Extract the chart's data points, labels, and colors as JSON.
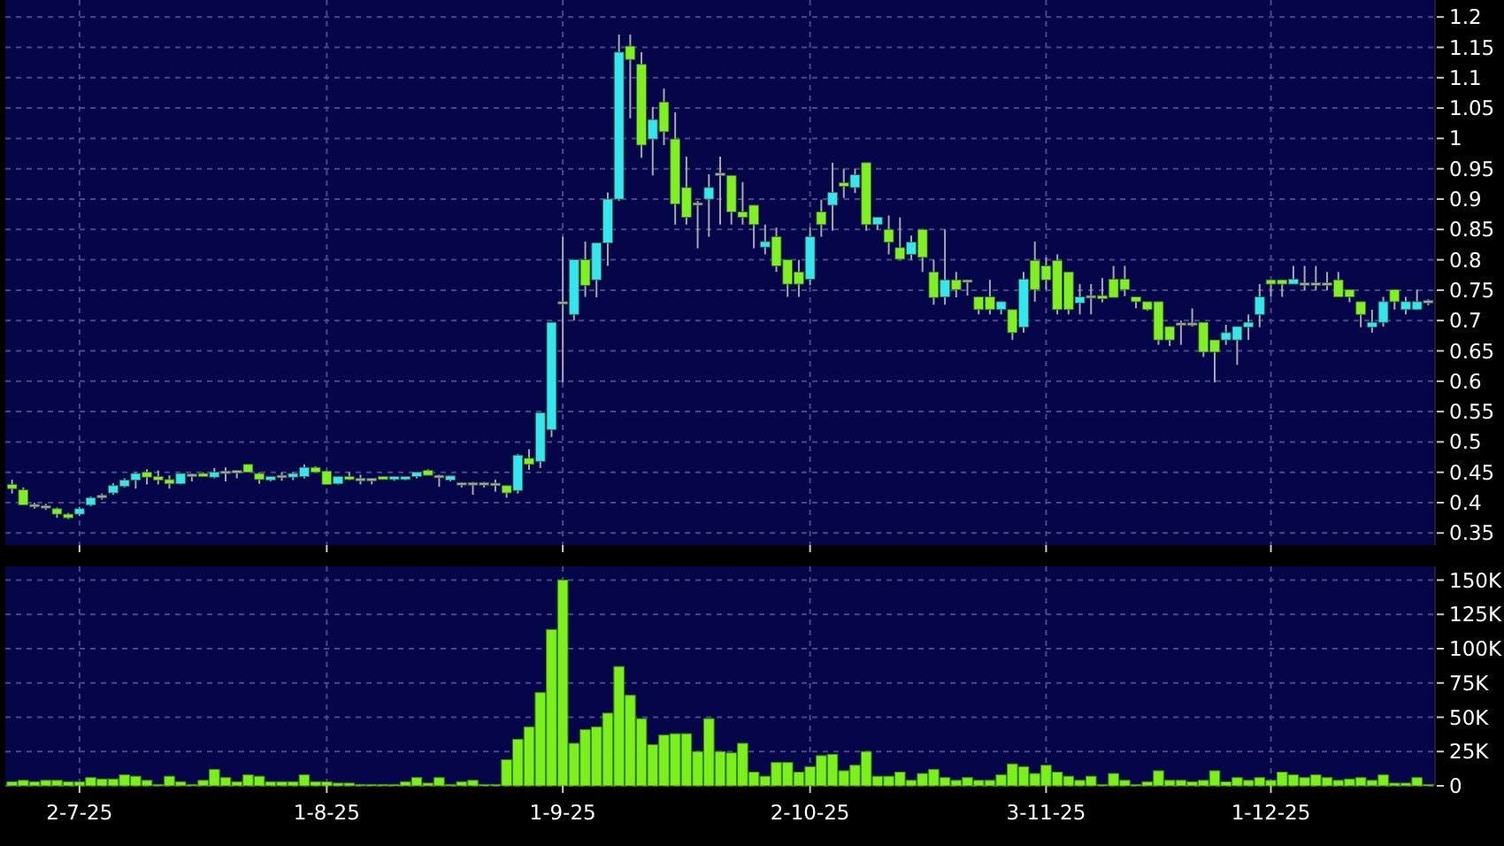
{
  "chart_data": [
    {
      "type": "candlestick",
      "tick_labels": "y",
      "grid": true,
      "colors": [
        "#80f020",
        "#80f020",
        "#a8a8a8",
        "#a8a8a8",
        "#80f020",
        "#80f020",
        "#33e6f0",
        "#33e6f0",
        "#a8a8a8",
        "#33e6f0",
        "#33e6f0",
        "#33e6f0",
        "#80f020",
        "#80f020",
        "#80f020",
        "#33e6f0",
        "#a8a8a8",
        "#80f020",
        "#33e6f0",
        "#a8a8a8",
        "#a8a8a8",
        "#80f020",
        "#80f020",
        "#33e6f0",
        "#a8a8a8",
        "#33e6f0",
        "#33e6f0",
        "#80f020",
        "#80f020",
        "#33e6f0",
        "#80f020",
        "#a8a8a8",
        "#a8a8a8",
        "#80f020",
        "#33e6f0",
        "#33e6f0",
        "#33e6f0",
        "#80f020",
        "#a8a8a8",
        "#33e6f0",
        "#a8a8a8",
        "#a8a8a8",
        "#a8a8a8",
        "#a8a8a8",
        "#80f020",
        "#33e6f0",
        "#80f020",
        "#33e6f0",
        "#33e6f0",
        "#a8a8a8",
        "#33e6f0",
        "#80f020",
        "#33e6f0",
        "#33e6f0",
        "#33e6f0",
        "#80f020",
        "#80f020",
        "#33e6f0",
        "#80f020",
        "#80f020",
        "#80f020",
        "#a8a8a8",
        "#33e6f0",
        "#a8a8a8",
        "#80f020",
        "#80f020",
        "#80f020",
        "#33e6f0",
        "#80f020",
        "#80f020",
        "#80f020",
        "#33e6f0",
        "#80f020",
        "#33e6f0",
        "#80f020",
        "#33e6f0",
        "#80f020",
        "#33e6f0",
        "#80f020",
        "#80f020",
        "#33e6f0",
        "#80f020",
        "#80f020",
        "#33e6f0",
        "#80f020",
        "#a8a8a8",
        "#80f020",
        "#80f020",
        "#33e6f0",
        "#80f020",
        "#33e6f0",
        "#80f020",
        "#80f020",
        "#80f020",
        "#80f020",
        "#33e6f0",
        "#a8a8a8",
        "#80f020",
        "#80f020",
        "#80f020",
        "#80f020",
        "#80f020",
        "#80f020",
        "#80f020",
        "#a8a8a8",
        "#a8a8a8",
        "#80f020",
        "#80f020",
        "#33e6f0",
        "#33e6f0",
        "#33e6f0",
        "#33e6f0",
        "#80f020",
        "#80f020",
        "#33e6f0",
        "#a8a8a8",
        "#a8a8a8",
        "#a8a8a8",
        "#80f020",
        "#80f020",
        "#80f020",
        "#33e6f0",
        "#33e6f0",
        "#80f020",
        "#33e6f0",
        "#33e6f0",
        "#a8a8a8"
      ],
      "ylim": [
        0.33,
        1.228
      ],
      "yticks": [
        0.35,
        0.4,
        0.45,
        0.5,
        0.55,
        0.6,
        0.65,
        0.7,
        0.75,
        0.8,
        0.85,
        0.9,
        0.95,
        1,
        1.05,
        1.1,
        1.15,
        1.2
      ],
      "ohlc": [
        [
          0.43,
          0.438,
          0.415,
          0.423
        ],
        [
          0.421,
          0.425,
          0.396,
          0.396
        ],
        [
          0.395,
          0.4,
          0.39,
          0.395
        ],
        [
          0.393,
          0.398,
          0.388,
          0.393
        ],
        [
          0.39,
          0.392,
          0.375,
          0.381
        ],
        [
          0.381,
          0.383,
          0.373,
          0.375
        ],
        [
          0.381,
          0.393,
          0.378,
          0.39
        ],
        [
          0.396,
          0.41,
          0.394,
          0.408
        ],
        [
          0.41,
          0.415,
          0.405,
          0.41
        ],
        [
          0.416,
          0.432,
          0.413,
          0.428
        ],
        [
          0.427,
          0.44,
          0.425,
          0.437
        ],
        [
          0.437,
          0.45,
          0.423,
          0.448
        ],
        [
          0.45,
          0.455,
          0.43,
          0.442
        ],
        [
          0.443,
          0.453,
          0.43,
          0.437
        ],
        [
          0.438,
          0.445,
          0.423,
          0.431
        ],
        [
          0.431,
          0.448,
          0.43,
          0.448
        ],
        [
          0.445,
          0.448,
          0.435,
          0.445
        ],
        [
          0.448,
          0.45,
          0.443,
          0.443
        ],
        [
          0.442,
          0.457,
          0.44,
          0.45
        ],
        [
          0.45,
          0.458,
          0.435,
          0.45
        ],
        [
          0.451,
          0.452,
          0.44,
          0.451
        ],
        [
          0.463,
          0.463,
          0.45,
          0.45
        ],
        [
          0.448,
          0.45,
          0.431,
          0.438
        ],
        [
          0.437,
          0.443,
          0.435,
          0.443
        ],
        [
          0.443,
          0.45,
          0.436,
          0.443
        ],
        [
          0.442,
          0.45,
          0.437,
          0.448
        ],
        [
          0.443,
          0.463,
          0.44,
          0.458
        ],
        [
          0.458,
          0.46,
          0.45,
          0.45
        ],
        [
          0.452,
          0.453,
          0.43,
          0.43
        ],
        [
          0.431,
          0.443,
          0.43,
          0.443
        ],
        [
          0.443,
          0.45,
          0.437,
          0.438
        ],
        [
          0.438,
          0.446,
          0.43,
          0.438
        ],
        [
          0.438,
          0.44,
          0.43,
          0.438
        ],
        [
          0.443,
          0.443,
          0.438,
          0.438
        ],
        [
          0.438,
          0.443,
          0.436,
          0.443
        ],
        [
          0.438,
          0.443,
          0.437,
          0.443
        ],
        [
          0.443,
          0.45,
          0.44,
          0.45
        ],
        [
          0.453,
          0.455,
          0.445,
          0.445
        ],
        [
          0.443,
          0.446,
          0.426,
          0.443
        ],
        [
          0.437,
          0.444,
          0.435,
          0.444
        ],
        [
          0.431,
          0.433,
          0.425,
          0.431
        ],
        [
          0.431,
          0.434,
          0.413,
          0.431
        ],
        [
          0.431,
          0.434,
          0.425,
          0.431
        ],
        [
          0.43,
          0.438,
          0.418,
          0.43
        ],
        [
          0.428,
          0.428,
          0.408,
          0.416
        ],
        [
          0.42,
          0.48,
          0.415,
          0.478
        ],
        [
          0.473,
          0.488,
          0.454,
          0.463
        ],
        [
          0.468,
          0.548,
          0.457,
          0.548
        ],
        [
          0.52,
          0.697,
          0.508,
          0.697
        ],
        [
          0.729,
          0.838,
          0.598,
          0.729
        ],
        [
          0.71,
          0.8,
          0.7,
          0.8
        ],
        [
          0.8,
          0.83,
          0.739,
          0.758
        ],
        [
          0.767,
          0.828,
          0.738,
          0.828
        ],
        [
          0.828,
          0.911,
          0.79,
          0.9
        ],
        [
          0.9,
          1.171,
          0.897,
          1.142
        ],
        [
          1.152,
          1.171,
          1.033,
          1.13
        ],
        [
          1.122,
          1.142,
          0.968,
          0.989
        ],
        [
          0.999,
          1.052,
          0.939,
          1.031
        ],
        [
          1.06,
          1.082,
          0.989,
          1.011
        ],
        [
          0.999,
          1.043,
          0.858,
          0.892
        ],
        [
          0.919,
          0.97,
          0.858,
          0.87
        ],
        [
          0.892,
          0.897,
          0.819,
          0.892
        ],
        [
          0.9,
          0.941,
          0.838,
          0.919
        ],
        [
          0.941,
          0.97,
          0.858,
          0.941
        ],
        [
          0.939,
          0.939,
          0.858,
          0.879
        ],
        [
          0.879,
          0.928,
          0.858,
          0.87
        ],
        [
          0.89,
          0.89,
          0.819,
          0.858
        ],
        [
          0.821,
          0.858,
          0.809,
          0.83
        ],
        [
          0.838,
          0.853,
          0.78,
          0.79
        ],
        [
          0.8,
          0.8,
          0.739,
          0.76
        ],
        [
          0.78,
          0.8,
          0.739,
          0.76
        ],
        [
          0.768,
          0.853,
          0.758,
          0.838
        ],
        [
          0.879,
          0.899,
          0.838,
          0.858
        ],
        [
          0.89,
          0.96,
          0.848,
          0.911
        ],
        [
          0.927,
          0.95,
          0.902,
          0.921
        ],
        [
          0.919,
          0.95,
          0.91,
          0.94
        ],
        [
          0.96,
          0.96,
          0.848,
          0.858
        ],
        [
          0.858,
          0.87,
          0.85,
          0.87
        ],
        [
          0.85,
          0.873,
          0.809,
          0.829
        ],
        [
          0.82,
          0.87,
          0.8,
          0.801
        ],
        [
          0.809,
          0.84,
          0.8,
          0.829
        ],
        [
          0.85,
          0.85,
          0.78,
          0.804
        ],
        [
          0.78,
          0.8,
          0.726,
          0.738
        ],
        [
          0.739,
          0.85,
          0.726,
          0.767
        ],
        [
          0.767,
          0.78,
          0.738,
          0.751
        ],
        [
          0.765,
          0.767,
          0.741,
          0.765
        ],
        [
          0.739,
          0.739,
          0.71,
          0.718
        ],
        [
          0.739,
          0.767,
          0.71,
          0.718
        ],
        [
          0.718,
          0.731,
          0.71,
          0.731
        ],
        [
          0.718,
          0.718,
          0.668,
          0.68
        ],
        [
          0.689,
          0.78,
          0.68,
          0.768
        ],
        [
          0.799,
          0.83,
          0.731,
          0.751
        ],
        [
          0.79,
          0.804,
          0.751,
          0.767
        ],
        [
          0.799,
          0.809,
          0.71,
          0.718
        ],
        [
          0.78,
          0.78,
          0.71,
          0.718
        ],
        [
          0.729,
          0.76,
          0.71,
          0.739
        ],
        [
          0.739,
          0.76,
          0.71,
          0.739
        ],
        [
          0.741,
          0.77,
          0.73,
          0.736
        ],
        [
          0.768,
          0.79,
          0.738,
          0.738
        ],
        [
          0.768,
          0.79,
          0.74,
          0.751
        ],
        [
          0.739,
          0.739,
          0.72,
          0.731
        ],
        [
          0.731,
          0.731,
          0.716,
          0.718
        ],
        [
          0.731,
          0.731,
          0.66,
          0.668
        ],
        [
          0.69,
          0.69,
          0.658,
          0.668
        ],
        [
          0.694,
          0.7,
          0.66,
          0.694
        ],
        [
          0.694,
          0.72,
          0.69,
          0.694
        ],
        [
          0.697,
          0.697,
          0.64,
          0.648
        ],
        [
          0.668,
          0.668,
          0.598,
          0.648
        ],
        [
          0.668,
          0.693,
          0.66,
          0.68
        ],
        [
          0.668,
          0.69,
          0.627,
          0.69
        ],
        [
          0.689,
          0.71,
          0.668,
          0.697
        ],
        [
          0.71,
          0.76,
          0.689,
          0.739
        ],
        [
          0.767,
          0.767,
          0.739,
          0.76
        ],
        [
          0.767,
          0.767,
          0.739,
          0.76
        ],
        [
          0.76,
          0.79,
          0.76,
          0.768
        ],
        [
          0.76,
          0.79,
          0.75,
          0.76
        ],
        [
          0.76,
          0.79,
          0.75,
          0.76
        ],
        [
          0.76,
          0.78,
          0.75,
          0.76
        ],
        [
          0.767,
          0.78,
          0.739,
          0.739
        ],
        [
          0.751,
          0.751,
          0.73,
          0.739
        ],
        [
          0.731,
          0.731,
          0.689,
          0.71
        ],
        [
          0.689,
          0.718,
          0.68,
          0.697
        ],
        [
          0.697,
          0.739,
          0.69,
          0.731
        ],
        [
          0.751,
          0.751,
          0.718,
          0.731
        ],
        [
          0.718,
          0.739,
          0.71,
          0.731
        ],
        [
          0.718,
          0.751,
          0.718,
          0.731
        ],
        [
          0.731,
          0.735,
          0.725,
          0.731
        ]
      ]
    },
    {
      "type": "bar",
      "grid": true,
      "color": "#7cf01c",
      "categories": [
        null,
        null,
        null,
        null,
        null,
        null,
        "2-7-25",
        null,
        null,
        null,
        null,
        null,
        null,
        null,
        null,
        null,
        null,
        null,
        null,
        null,
        null,
        null,
        null,
        null,
        null,
        null,
        null,
        null,
        "1-8-25",
        null,
        null,
        null,
        null,
        null,
        null,
        null,
        null,
        null,
        null,
        null,
        null,
        null,
        null,
        null,
        null,
        null,
        null,
        null,
        null,
        "1-9-25",
        null,
        null,
        null,
        null,
        null,
        null,
        null,
        null,
        null,
        null,
        null,
        null,
        null,
        null,
        null,
        null,
        null,
        null,
        null,
        null,
        null,
        "2-10-25",
        null,
        null,
        null,
        null,
        null,
        null,
        null,
        null,
        null,
        null,
        null,
        null,
        null,
        null,
        null,
        null,
        null,
        null,
        null,
        null,
        "3-11-25",
        null,
        null,
        null,
        null,
        null,
        null,
        null,
        null,
        null,
        null,
        null,
        null,
        null,
        null,
        null,
        null,
        null,
        null,
        null,
        "1-12-25",
        null,
        null,
        null,
        null,
        null,
        null,
        null,
        null,
        null,
        null,
        null,
        null,
        null,
        null
      ],
      "ylim": [
        0,
        160
      ],
      "yticks": [
        0,
        {
          "value": 25,
          "label": "25K"
        },
        {
          "value": 50,
          "label": "50K"
        },
        {
          "value": 75,
          "label": "75K"
        },
        {
          "value": 100,
          "label": "100K"
        },
        {
          "value": 125,
          "label": "125K"
        },
        {
          "value": 150,
          "label": "150K"
        }
      ],
      "values": [
        3,
        4,
        3,
        4,
        4,
        3,
        3,
        6,
        5,
        5,
        8,
        7,
        4,
        1,
        7,
        3,
        1,
        4,
        12,
        6,
        3,
        8,
        7,
        3,
        3,
        3,
        8,
        3,
        3,
        2,
        2,
        1,
        1,
        1,
        1,
        3,
        6,
        2,
        6,
        1,
        3,
        4,
        1,
        1,
        19,
        34,
        43,
        68,
        114,
        150,
        31,
        41,
        43,
        53,
        87,
        66,
        49,
        30,
        37,
        38,
        38,
        25,
        49,
        25,
        24,
        31,
        10,
        7,
        17,
        17,
        10,
        14,
        22,
        23,
        11,
        15,
        25,
        7,
        7,
        10,
        4,
        9,
        12,
        6,
        4,
        6,
        4,
        4,
        8,
        16,
        14,
        9,
        15,
        10,
        7,
        4,
        7,
        1,
        9,
        4,
        1,
        3,
        11,
        4,
        4,
        3,
        4,
        11,
        3,
        6,
        4,
        6,
        4,
        10,
        8,
        6,
        8,
        6,
        4,
        5,
        6,
        4,
        8,
        2,
        2,
        6,
        1
      ]
    }
  ]
}
